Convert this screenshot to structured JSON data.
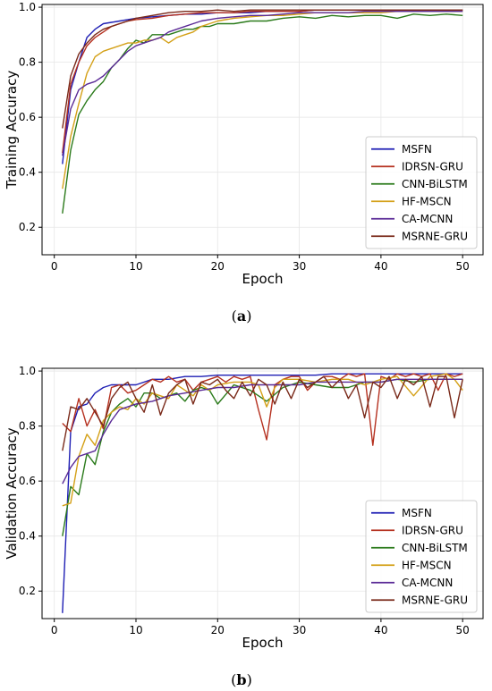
{
  "chart_data": [
    {
      "type": "line",
      "panel_label": "a",
      "xlabel": "Epoch",
      "ylabel": "Training Accuracy",
      "xlim": [
        -1.5,
        52.5
      ],
      "ylim": [
        0.1,
        1.01
      ],
      "xticks": [
        0,
        10,
        20,
        30,
        40,
        50
      ],
      "yticks": [
        0.2,
        0.4,
        0.6,
        0.8,
        1.0
      ],
      "yticklabels": [
        "0.2",
        "0.4",
        "0.6",
        "0.8",
        "1.0"
      ],
      "grid": true,
      "legend_position": "lower-right",
      "series": [
        {
          "name": "MSFN",
          "color": "#1f1fb4",
          "x": [
            1,
            2,
            3,
            4,
            5,
            6,
            7,
            8,
            9,
            10,
            12,
            14,
            16,
            18,
            20,
            22,
            24,
            26,
            28,
            30,
            32,
            34,
            36,
            38,
            40,
            42,
            44,
            46,
            48,
            50
          ],
          "values": [
            0.43,
            0.7,
            0.8,
            0.89,
            0.92,
            0.94,
            0.945,
            0.95,
            0.955,
            0.96,
            0.965,
            0.97,
            0.975,
            0.975,
            0.98,
            0.98,
            0.98,
            0.985,
            0.985,
            0.985,
            0.99,
            0.99,
            0.99,
            0.99,
            0.99,
            0.99,
            0.99,
            0.99,
            0.99,
            0.99
          ]
        },
        {
          "name": "IDRSN-GRU",
          "color": "#b5301f",
          "x": [
            1,
            2,
            3,
            4,
            5,
            6,
            7,
            8,
            9,
            10,
            12,
            14,
            16,
            18,
            20,
            22,
            24,
            26,
            28,
            30,
            32,
            34,
            36,
            38,
            40,
            42,
            44,
            46,
            48,
            50
          ],
          "values": [
            0.47,
            0.72,
            0.8,
            0.86,
            0.89,
            0.91,
            0.93,
            0.94,
            0.95,
            0.955,
            0.96,
            0.97,
            0.975,
            0.98,
            0.98,
            0.98,
            0.985,
            0.985,
            0.985,
            0.985,
            0.99,
            0.99,
            0.99,
            0.99,
            0.99,
            0.99,
            0.99,
            0.99,
            0.99,
            0.99
          ]
        },
        {
          "name": "CNN-BiLSTM",
          "color": "#2a7a1a",
          "x": [
            1,
            2,
            3,
            4,
            5,
            6,
            7,
            8,
            9,
            10,
            11,
            12,
            13,
            14,
            15,
            16,
            17,
            18,
            19,
            20,
            22,
            24,
            26,
            28,
            30,
            32,
            34,
            36,
            38,
            40,
            42,
            44,
            46,
            48,
            50
          ],
          "values": [
            0.25,
            0.48,
            0.61,
            0.66,
            0.7,
            0.73,
            0.78,
            0.81,
            0.85,
            0.88,
            0.87,
            0.9,
            0.9,
            0.9,
            0.91,
            0.92,
            0.92,
            0.93,
            0.93,
            0.94,
            0.94,
            0.95,
            0.95,
            0.96,
            0.965,
            0.96,
            0.97,
            0.965,
            0.97,
            0.97,
            0.96,
            0.975,
            0.97,
            0.975,
            0.97
          ]
        },
        {
          "name": "HF-MSCN",
          "color": "#d4a017",
          "x": [
            1,
            2,
            3,
            4,
            5,
            6,
            7,
            8,
            9,
            10,
            11,
            12,
            13,
            14,
            15,
            16,
            17,
            18,
            19,
            20,
            22,
            24,
            26,
            28,
            30,
            32,
            34,
            36,
            38,
            40,
            42,
            44,
            46,
            48,
            50
          ],
          "values": [
            0.34,
            0.53,
            0.65,
            0.76,
            0.82,
            0.84,
            0.85,
            0.86,
            0.87,
            0.87,
            0.88,
            0.88,
            0.89,
            0.87,
            0.89,
            0.9,
            0.91,
            0.93,
            0.94,
            0.95,
            0.96,
            0.965,
            0.97,
            0.97,
            0.975,
            0.98,
            0.98,
            0.98,
            0.98,
            0.98,
            0.985,
            0.985,
            0.985,
            0.985,
            0.985
          ]
        },
        {
          "name": "CA-MCNN",
          "color": "#5a2a96",
          "x": [
            1,
            2,
            3,
            4,
            5,
            6,
            7,
            8,
            9,
            10,
            11,
            12,
            13,
            14,
            15,
            16,
            17,
            18,
            19,
            20,
            22,
            24,
            26,
            28,
            30,
            32,
            34,
            36,
            38,
            40,
            42,
            44,
            46,
            48,
            50
          ],
          "values": [
            0.46,
            0.63,
            0.7,
            0.72,
            0.73,
            0.75,
            0.78,
            0.81,
            0.84,
            0.86,
            0.87,
            0.88,
            0.89,
            0.91,
            0.92,
            0.93,
            0.94,
            0.95,
            0.955,
            0.96,
            0.965,
            0.97,
            0.97,
            0.975,
            0.98,
            0.98,
            0.98,
            0.98,
            0.985,
            0.985,
            0.985,
            0.985,
            0.985,
            0.985,
            0.985
          ]
        },
        {
          "name": "MSRNE-GRU",
          "color": "#7a2a1a",
          "x": [
            1,
            2,
            3,
            4,
            5,
            6,
            7,
            8,
            9,
            10,
            12,
            14,
            16,
            18,
            20,
            22,
            24,
            26,
            28,
            30,
            32,
            34,
            36,
            38,
            40,
            42,
            44,
            46,
            48,
            50
          ],
          "values": [
            0.56,
            0.75,
            0.83,
            0.87,
            0.9,
            0.92,
            0.93,
            0.94,
            0.95,
            0.96,
            0.97,
            0.98,
            0.985,
            0.985,
            0.99,
            0.985,
            0.99,
            0.99,
            0.99,
            0.99,
            0.99,
            0.99,
            0.99,
            0.99,
            0.99,
            0.99,
            0.99,
            0.99,
            0.99,
            0.99
          ]
        }
      ]
    },
    {
      "type": "line",
      "panel_label": "b",
      "xlabel": "Epoch",
      "ylabel": "Validation Accuracy",
      "xlim": [
        -1.5,
        52.5
      ],
      "ylim": [
        0.1,
        1.01
      ],
      "xticks": [
        0,
        10,
        20,
        30,
        40,
        50
      ],
      "yticks": [
        0.2,
        0.4,
        0.6,
        0.8,
        1.0
      ],
      "yticklabels": [
        "0.2",
        "0.4",
        "0.6",
        "0.8",
        "1.0"
      ],
      "grid": true,
      "legend_position": "lower-right",
      "series": [
        {
          "name": "MSFN",
          "color": "#1f1fb4",
          "x": [
            1,
            2,
            3,
            4,
            5,
            6,
            7,
            8,
            9,
            10,
            12,
            14,
            16,
            18,
            20,
            22,
            24,
            26,
            28,
            30,
            32,
            34,
            36,
            38,
            40,
            42,
            44,
            46,
            48,
            50
          ],
          "values": [
            0.12,
            0.78,
            0.87,
            0.88,
            0.92,
            0.94,
            0.95,
            0.95,
            0.95,
            0.95,
            0.97,
            0.97,
            0.98,
            0.98,
            0.985,
            0.985,
            0.985,
            0.985,
            0.985,
            0.985,
            0.985,
            0.99,
            0.99,
            0.99,
            0.99,
            0.99,
            0.99,
            0.99,
            0.99,
            0.99
          ]
        },
        {
          "name": "IDRSN-GRU",
          "color": "#b5301f",
          "x": [
            1,
            2,
            3,
            4,
            5,
            6,
            7,
            8,
            9,
            10,
            11,
            12,
            13,
            14,
            15,
            16,
            17,
            18,
            19,
            20,
            21,
            22,
            23,
            24,
            25,
            26,
            27,
            28,
            29,
            30,
            31,
            32,
            33,
            34,
            35,
            36,
            37,
            38,
            39,
            40,
            41,
            42,
            43,
            44,
            45,
            46,
            47,
            48,
            49,
            50
          ],
          "values": [
            0.81,
            0.78,
            0.9,
            0.8,
            0.86,
            0.79,
            0.94,
            0.95,
            0.92,
            0.93,
            0.95,
            0.97,
            0.96,
            0.98,
            0.96,
            0.97,
            0.93,
            0.96,
            0.97,
            0.98,
            0.96,
            0.98,
            0.97,
            0.98,
            0.86,
            0.75,
            0.95,
            0.97,
            0.98,
            0.98,
            0.93,
            0.96,
            0.98,
            0.98,
            0.97,
            0.99,
            0.98,
            0.99,
            0.73,
            0.98,
            0.97,
            0.99,
            0.98,
            0.99,
            0.98,
            0.99,
            0.93,
            0.99,
            0.98,
            0.99
          ]
        },
        {
          "name": "CNN-BiLSTM",
          "color": "#2a7a1a",
          "x": [
            1,
            2,
            3,
            4,
            5,
            6,
            7,
            8,
            9,
            10,
            11,
            12,
            13,
            14,
            15,
            16,
            17,
            18,
            19,
            20,
            22,
            24,
            26,
            28,
            30,
            32,
            34,
            36,
            38,
            40,
            42,
            44,
            46,
            48,
            50
          ],
          "values": [
            0.4,
            0.58,
            0.55,
            0.7,
            0.66,
            0.78,
            0.85,
            0.88,
            0.9,
            0.87,
            0.92,
            0.92,
            0.9,
            0.91,
            0.92,
            0.89,
            0.93,
            0.94,
            0.93,
            0.88,
            0.95,
            0.93,
            0.89,
            0.94,
            0.96,
            0.95,
            0.94,
            0.94,
            0.96,
            0.96,
            0.97,
            0.96,
            0.97,
            0.97,
            0.97
          ]
        },
        {
          "name": "HF-MSCN",
          "color": "#d4a017",
          "x": [
            1,
            2,
            3,
            4,
            5,
            6,
            7,
            8,
            9,
            10,
            11,
            12,
            13,
            14,
            15,
            16,
            17,
            18,
            19,
            20,
            22,
            24,
            25,
            26,
            27,
            28,
            30,
            32,
            34,
            36,
            38,
            40,
            42,
            44,
            46,
            48,
            49,
            50
          ],
          "values": [
            0.51,
            0.52,
            0.69,
            0.77,
            0.73,
            0.82,
            0.85,
            0.87,
            0.86,
            0.9,
            0.88,
            0.92,
            0.91,
            0.9,
            0.95,
            0.93,
            0.91,
            0.95,
            0.93,
            0.95,
            0.96,
            0.96,
            0.95,
            0.87,
            0.94,
            0.97,
            0.97,
            0.96,
            0.97,
            0.97,
            0.95,
            0.97,
            0.98,
            0.91,
            0.98,
            0.99,
            0.97,
            0.93
          ]
        },
        {
          "name": "CA-MCNN",
          "color": "#5a2a96",
          "x": [
            1,
            2,
            3,
            4,
            5,
            6,
            7,
            8,
            9,
            10,
            12,
            14,
            16,
            18,
            20,
            22,
            24,
            26,
            28,
            30,
            32,
            34,
            36,
            38,
            40,
            42,
            44,
            46,
            48,
            50
          ],
          "values": [
            0.59,
            0.65,
            0.69,
            0.7,
            0.71,
            0.77,
            0.82,
            0.86,
            0.87,
            0.88,
            0.89,
            0.91,
            0.92,
            0.93,
            0.94,
            0.94,
            0.95,
            0.95,
            0.95,
            0.95,
            0.96,
            0.96,
            0.96,
            0.96,
            0.96,
            0.97,
            0.97,
            0.97,
            0.97,
            0.97
          ]
        },
        {
          "name": "MSRNE-GRU",
          "color": "#7a2a1a",
          "x": [
            1,
            2,
            3,
            4,
            5,
            6,
            7,
            8,
            9,
            10,
            11,
            12,
            13,
            14,
            15,
            16,
            17,
            18,
            19,
            20,
            21,
            22,
            23,
            24,
            25,
            26,
            27,
            28,
            29,
            30,
            31,
            32,
            33,
            34,
            35,
            36,
            37,
            38,
            39,
            40,
            41,
            42,
            43,
            44,
            45,
            46,
            47,
            48,
            49,
            50
          ],
          "values": [
            0.71,
            0.87,
            0.86,
            0.9,
            0.85,
            0.8,
            0.9,
            0.94,
            0.96,
            0.9,
            0.85,
            0.95,
            0.84,
            0.92,
            0.95,
            0.97,
            0.88,
            0.96,
            0.95,
            0.97,
            0.93,
            0.9,
            0.96,
            0.91,
            0.97,
            0.95,
            0.88,
            0.96,
            0.9,
            0.97,
            0.94,
            0.96,
            0.98,
            0.94,
            0.97,
            0.9,
            0.95,
            0.83,
            0.96,
            0.94,
            0.98,
            0.9,
            0.97,
            0.95,
            0.98,
            0.87,
            0.98,
            0.98,
            0.83,
            0.97
          ]
        }
      ]
    }
  ]
}
